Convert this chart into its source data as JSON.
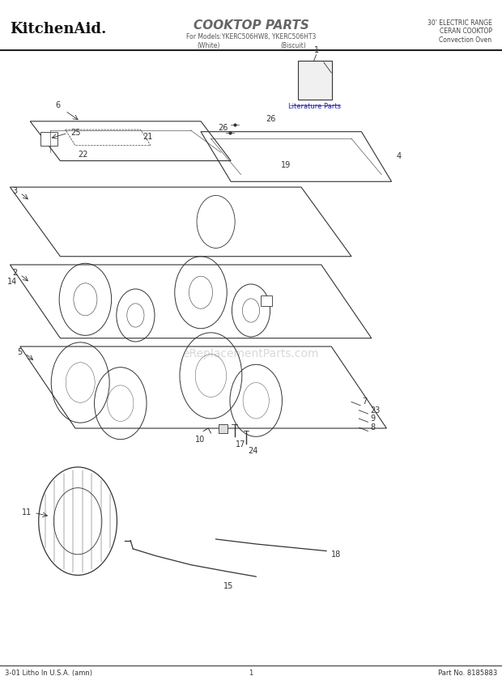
{
  "title": "COOKTOP PARTS",
  "subtitle_line1": "For Models:YKERC506HW8, YKERC506HT3",
  "subtitle_line2_left": "(White)",
  "subtitle_line2_right": "(Biscuit)",
  "brand": "KitchenAid.",
  "right_header_line1": "30' ELECTRIC RANGE",
  "right_header_line2": "CERAN COOKTOP",
  "right_header_line3": "Convection Oven",
  "footer_left": "3-01 Litho In U.S.A. (amn)",
  "footer_center": "1",
  "footer_right": "Part No. 8185883",
  "watermark": "eReplacementParts.com",
  "literature_label": "Literature Parts",
  "bg_color": "#ffffff",
  "line_color": "#333333"
}
